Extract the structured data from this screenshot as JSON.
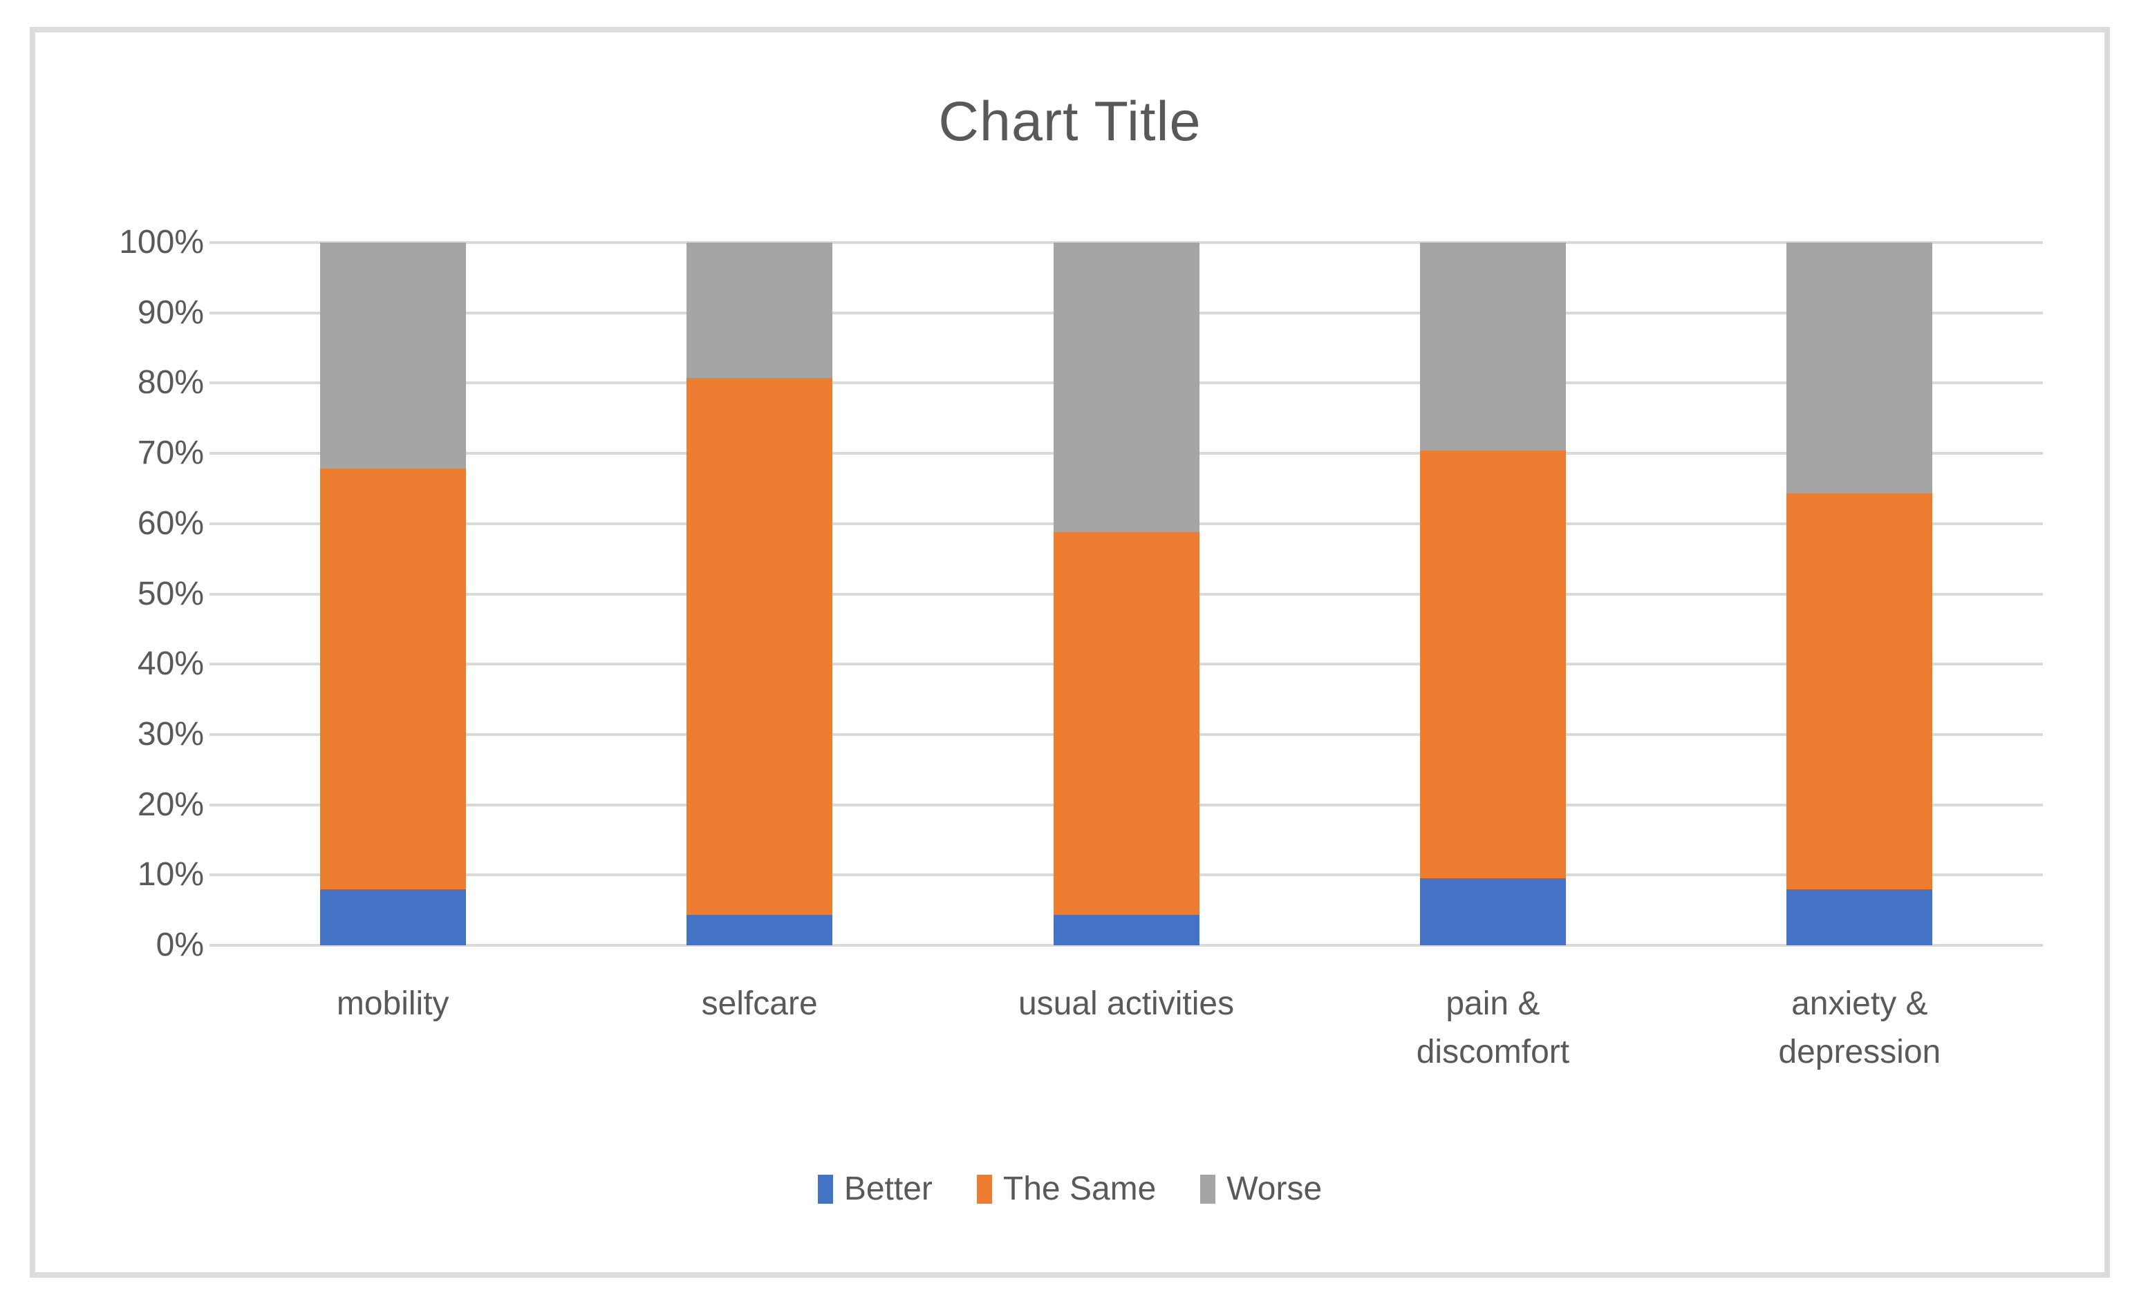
{
  "chart_data": {
    "type": "bar",
    "stacked": true,
    "percent_stacked": true,
    "title": "Chart Title",
    "categories": [
      "mobility",
      "selfcare",
      "usual activities",
      "pain &\ndiscomfort",
      "anxiety &\ndepression"
    ],
    "series": [
      {
        "name": "Better",
        "color": "#4472C4",
        "values": [
          8.0,
          4.3,
          4.3,
          9.5,
          8.0
        ]
      },
      {
        "name": "The Same",
        "color": "#ED7D31",
        "values": [
          59.8,
          76.4,
          54.5,
          60.9,
          56.3
        ]
      },
      {
        "name": "Worse",
        "color": "#A5A5A5",
        "values": [
          32.2,
          19.3,
          41.2,
          29.6,
          35.7
        ]
      }
    ],
    "y_ticks": [
      "0%",
      "10%",
      "20%",
      "30%",
      "40%",
      "50%",
      "60%",
      "70%",
      "80%",
      "90%",
      "100%"
    ],
    "ylim": [
      0,
      100
    ],
    "grid": true,
    "legend_position": "bottom",
    "gridline_color": "#D9D9D9",
    "text_color": "#595959",
    "frame_border_color": "#DCDCDC"
  }
}
